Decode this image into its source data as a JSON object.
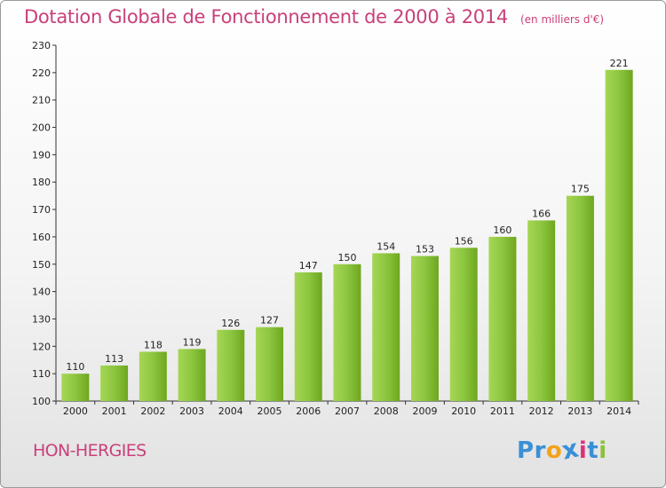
{
  "chart_data": {
    "type": "bar",
    "title": "Dotation Globale de Fonctionnement de 2000 à 2014",
    "subtitle": "(en milliers d'€)",
    "categories": [
      "2000",
      "2001",
      "2002",
      "2003",
      "2004",
      "2005",
      "2006",
      "2007",
      "2008",
      "2009",
      "2010",
      "2011",
      "2012",
      "2013",
      "2014"
    ],
    "values": [
      110,
      113,
      118,
      119,
      126,
      127,
      147,
      150,
      154,
      153,
      156,
      160,
      166,
      175,
      221
    ],
    "ylim": [
      100,
      230
    ],
    "yticks": [
      100,
      110,
      120,
      130,
      140,
      150,
      160,
      170,
      180,
      190,
      200,
      210,
      220,
      230
    ],
    "grid": false,
    "bar_color": "#7ab82a"
  },
  "town_name": "HON-HERGIES",
  "logo": {
    "letters": [
      "P",
      "r",
      "o",
      "x",
      "i",
      "t",
      "i"
    ],
    "colors": [
      "#3b8fd6",
      "#3b8fd6",
      "#f2a21b",
      "#3b8fd6",
      "#e0307a",
      "#3b8fd6",
      "#8dc03a"
    ]
  },
  "colors": {
    "title": "#c9407a",
    "bar_light": "#a6d655",
    "bar_dark": "#6fa61f"
  }
}
